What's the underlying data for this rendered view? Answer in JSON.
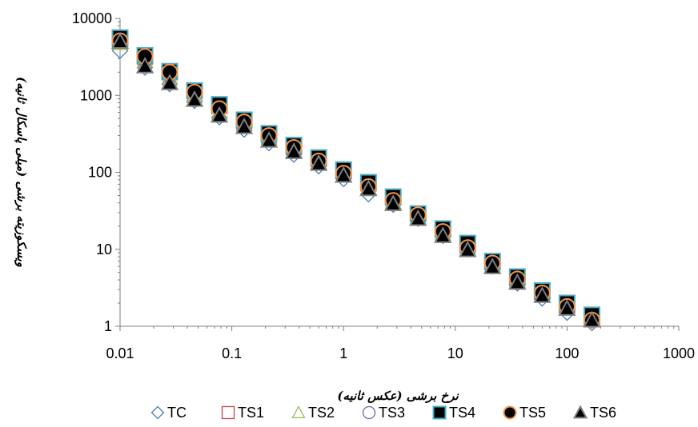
{
  "chart_data": {
    "type": "scatter",
    "xscale": "log",
    "yscale": "log",
    "xlim": [
      0.01,
      1000
    ],
    "ylim": [
      1,
      10000
    ],
    "grid": false,
    "xlabel": "نرخ برشی (عکس ثانیه)",
    "ylabel": "ویسکوزیته برشی (میلی پاسکال ثانیه)",
    "legend_position": "bottom",
    "x_ticks": [
      {
        "value": 0.01,
        "label": "0.01"
      },
      {
        "value": 0.1,
        "label": "0.1"
      },
      {
        "value": 1,
        "label": "1"
      },
      {
        "value": 10,
        "label": "10"
      },
      {
        "value": 100,
        "label": "100"
      },
      {
        "value": 1000,
        "label": "1000"
      }
    ],
    "y_ticks": [
      {
        "value": 1,
        "label": "1"
      },
      {
        "value": 10,
        "label": "10"
      },
      {
        "value": 100,
        "label": "100"
      },
      {
        "value": 1000,
        "label": "1000"
      },
      {
        "value": 10000,
        "label": "10000"
      }
    ],
    "x": [
      0.01,
      0.0167,
      0.0278,
      0.0464,
      0.0774,
      0.129,
      0.215,
      0.359,
      0.599,
      1.0,
      1.67,
      2.78,
      4.64,
      7.74,
      12.9,
      21.5,
      35.9,
      59.9,
      100,
      167
    ],
    "series": [
      {
        "name": "TC",
        "marker": "diamond-open",
        "color": "#4a7ebb",
        "values": [
          3800,
          2300,
          1400,
          850,
          520,
          360,
          240,
          170,
          120,
          82,
          52,
          38,
          25,
          15,
          10,
          6.0,
          3.6,
          2.3,
          1.5,
          1.1
        ]
      },
      {
        "name": "TS1",
        "marker": "square-open",
        "color": "#be4b48",
        "values": [
          5500,
          3200,
          2000,
          1150,
          730,
          470,
          320,
          220,
          150,
          105,
          72,
          47,
          29,
          18,
          11.5,
          6.8,
          4.2,
          2.8,
          1.9,
          1.3
        ]
      },
      {
        "name": "TS2",
        "marker": "triangle-open",
        "color": "#98b954",
        "values": [
          4800,
          2800,
          1700,
          980,
          600,
          420,
          280,
          190,
          135,
          92,
          63,
          41,
          26,
          16,
          10.5,
          6.2,
          3.9,
          2.5,
          1.7,
          1.2
        ]
      },
      {
        "name": "TS3",
        "marker": "circle-open",
        "color": "#7d60a0",
        "values": [
          5200,
          3100,
          1950,
          1120,
          700,
          460,
          310,
          215,
          145,
          100,
          68,
          45,
          28,
          17,
          11,
          6.5,
          4.1,
          2.7,
          1.8,
          1.25
        ]
      },
      {
        "name": "TS4",
        "marker": "square-filled",
        "color": "#000000",
        "edge": "#4bacc6",
        "values": [
          5600,
          3300,
          2050,
          1150,
          760,
          480,
          320,
          225,
          155,
          108,
          74,
          48,
          29,
          18.5,
          12,
          7.0,
          4.4,
          2.9,
          2.0,
          1.4
        ]
      },
      {
        "name": "TS5",
        "marker": "circle-filled",
        "color": "#000000",
        "edge": "#f79646",
        "values": [
          5100,
          3200,
          2000,
          1100,
          670,
          450,
          300,
          210,
          140,
          97,
          65,
          43,
          28,
          17,
          10.5,
          6.6,
          4.1,
          2.7,
          1.8,
          1.2
        ]
      },
      {
        "name": "TS6",
        "marker": "triangle-filled",
        "color": "#000000",
        "edge": "#7f7f7f",
        "values": [
          5000,
          2400,
          1450,
          880,
          550,
          390,
          260,
          185,
          130,
          91,
          61,
          39,
          25,
          15,
          9.8,
          5.9,
          3.7,
          2.5,
          1.7,
          1.2
        ]
      }
    ]
  }
}
